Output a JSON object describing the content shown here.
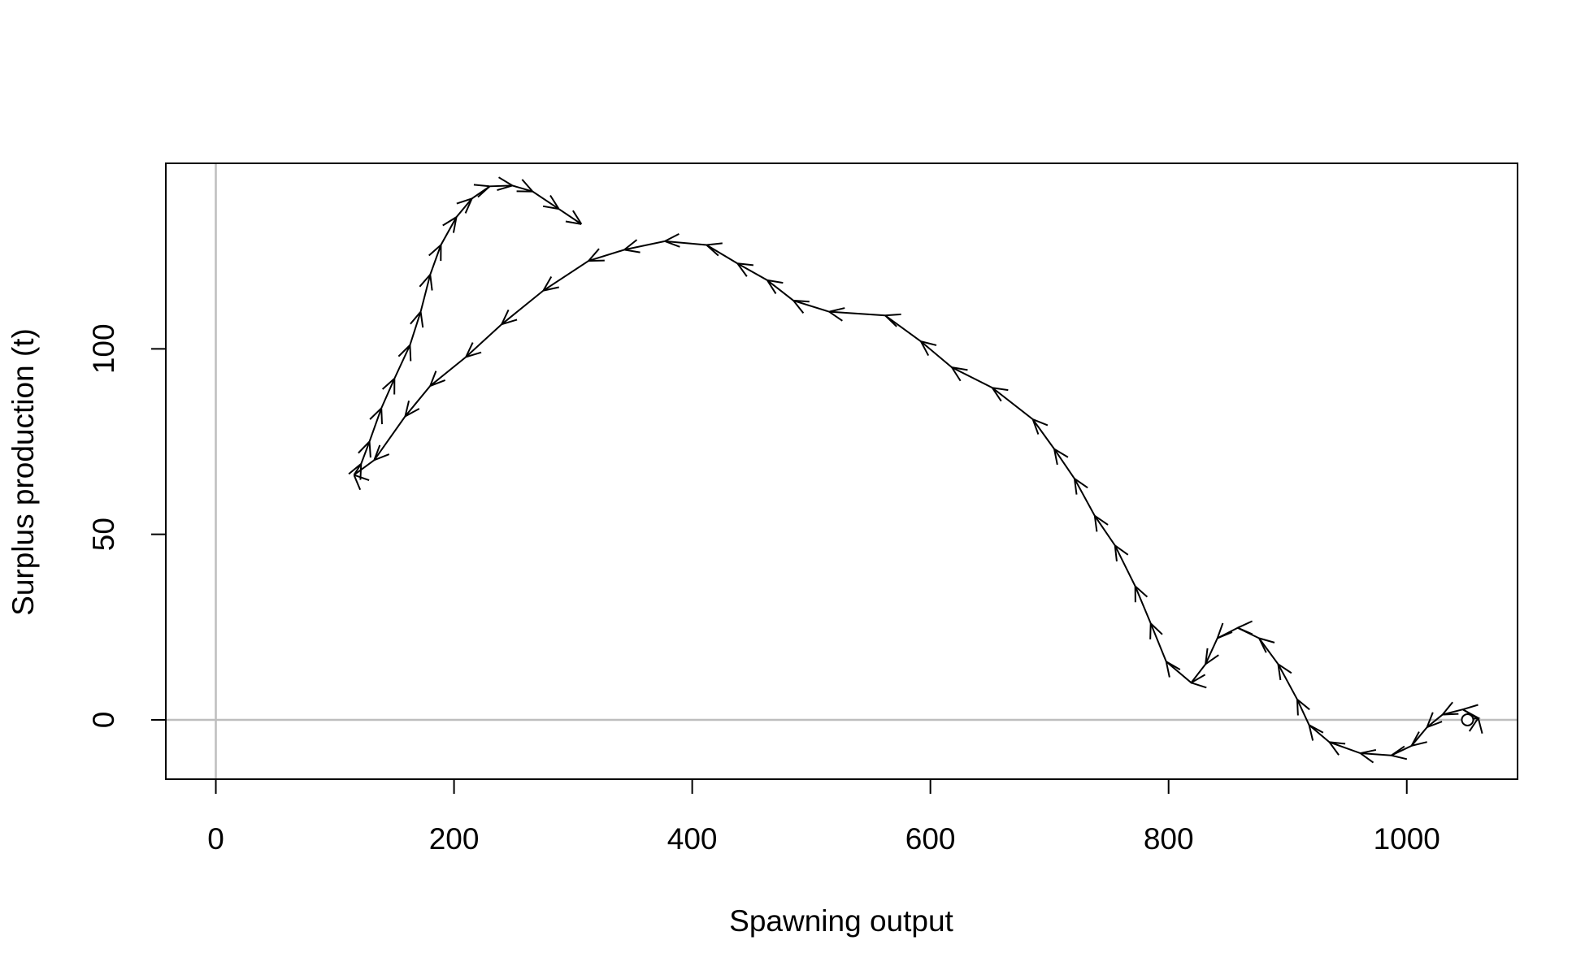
{
  "chart_data": {
    "type": "line",
    "arrows": true,
    "start_marker": true,
    "x_label": "Spawning output",
    "y_label": "Surplus production (t)",
    "xlim": [
      -42,
      1093
    ],
    "ylim": [
      -16,
      150
    ],
    "xticks": [
      0,
      200,
      400,
      600,
      800,
      1000
    ],
    "yticks": [
      0,
      50,
      100
    ],
    "reference_lines": {
      "x": 0,
      "y": 0,
      "color": "#bebebe"
    },
    "series": [
      {
        "color": "#000000",
        "x": [
          1051,
          1060,
          1047,
          1030,
          1017,
          1004,
          987,
          961,
          935,
          918,
          908,
          892,
          876,
          858,
          841,
          831,
          819,
          798,
          785,
          772,
          755,
          738,
          721,
          704,
          686,
          652,
          618,
          592,
          562,
          515,
          485,
          463,
          438,
          412,
          377,
          343,
          313,
          275,
          240,
          210,
          180,
          159,
          133,
          116,
          122,
          129,
          139,
          150,
          163,
          172,
          180,
          189,
          202,
          215,
          230,
          249,
          266,
          288,
          307
        ],
        "values": [
          0,
          0.5,
          2.8,
          1.4,
          -2,
          -7,
          -9.6,
          -9,
          -6,
          -1.4,
          5.5,
          15,
          22,
          24.8,
          22,
          15,
          10,
          15.7,
          26,
          36,
          47,
          55,
          65,
          73,
          81,
          89.5,
          95,
          102,
          109,
          110,
          113,
          118.5,
          123,
          128,
          129,
          126.7,
          123.7,
          115.7,
          106.6,
          97.8,
          90,
          81.8,
          70,
          66,
          69,
          75,
          84,
          92,
          101,
          110,
          120,
          128,
          135.5,
          140.5,
          143.8,
          144,
          142.4,
          137.7,
          133.6
        ]
      }
    ]
  }
}
